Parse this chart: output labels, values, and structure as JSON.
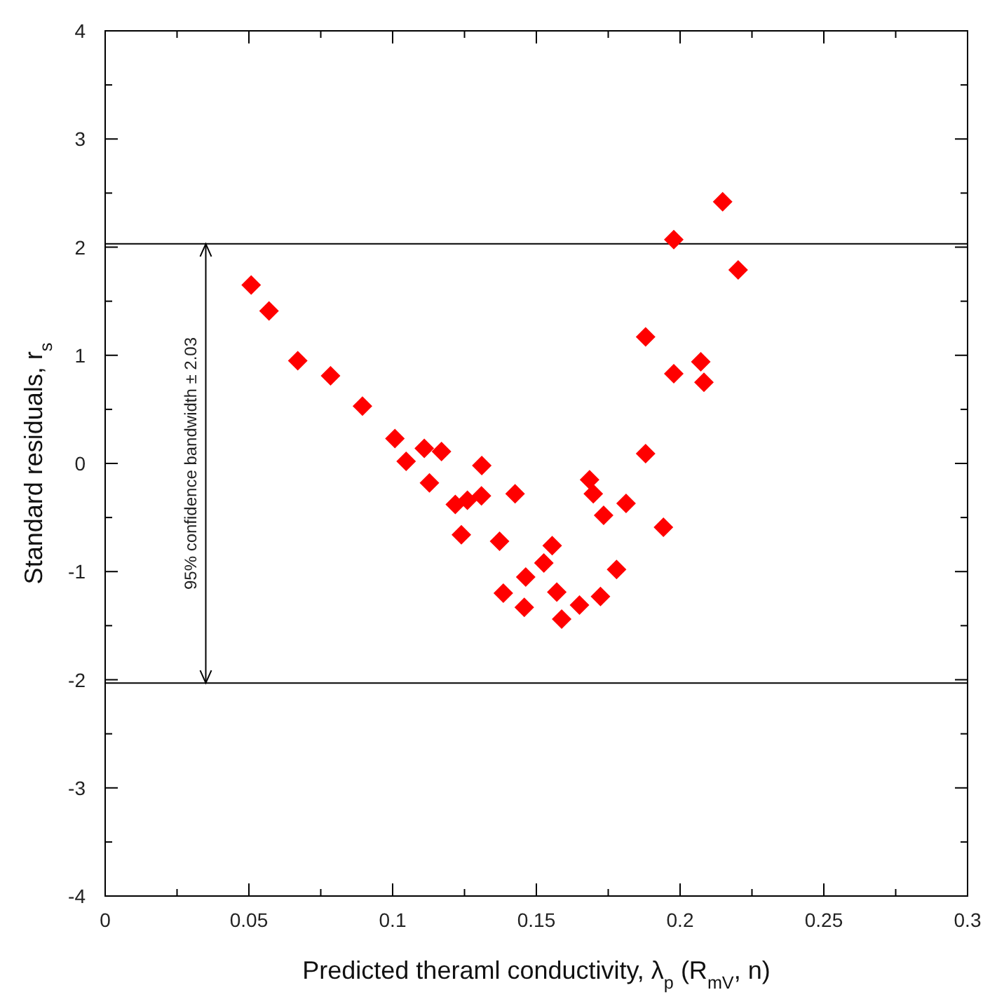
{
  "chart_data": {
    "type": "scatter",
    "xlabel": "Predicted theraml conductivity, λ$_{p}$ (R$_{mV}$, n)",
    "ylabel": "Standard residuals, r$_{s}$",
    "xlim": [
      0,
      0.3
    ],
    "ylim": [
      -4,
      4
    ],
    "xticks": [
      0,
      {
        "value": 0.025,
        "label": null
      },
      0.05,
      {
        "value": 0.075,
        "label": null
      },
      0.1,
      {
        "value": 0.125,
        "label": null
      },
      0.15,
      {
        "value": 0.175,
        "label": null
      },
      0.2,
      {
        "value": 0.225,
        "label": null
      },
      0.25,
      {
        "value": 0.275,
        "label": null
      },
      0.3
    ],
    "yticks": [
      -4,
      {
        "value": -3.5,
        "label": null
      },
      -3,
      {
        "value": -2.5,
        "label": null
      },
      -2,
      {
        "value": -1.5,
        "label": null
      },
      -1,
      {
        "value": -0.5,
        "label": null
      },
      0,
      {
        "value": 0.5,
        "label": null
      },
      1,
      {
        "value": 1.5,
        "label": null
      },
      2,
      {
        "value": 2.5,
        "label": null
      },
      3,
      {
        "value": 3.5,
        "label": null
      },
      4
    ],
    "grid": false,
    "marker": "diamond",
    "ref_lines": [
      {
        "axis": "y",
        "value": 2.03,
        "color": "#000000"
      },
      {
        "axis": "y",
        "value": -2.03,
        "color": "#000000"
      }
    ],
    "annotations": [
      "95% confidence bandwidth ± 2.03"
    ],
    "series": [
      {
        "color": "#ff0000",
        "x": [
          0.0508,
          0.057,
          0.067,
          0.0784,
          0.0895,
          0.1008,
          0.1047,
          0.111,
          0.117,
          0.1128,
          0.131,
          0.1218,
          0.126,
          0.1309,
          0.1239,
          0.1372,
          0.1385,
          0.1426,
          0.188,
          0.1685,
          0.1698,
          0.1812,
          0.1734,
          0.1942,
          0.1555,
          0.1526,
          0.1779,
          0.1463,
          0.1571,
          0.1723,
          0.1458,
          0.165,
          0.1588,
          0.2148,
          0.1978,
          0.2202,
          0.188,
          0.1978,
          0.2072,
          0.2083
        ],
        "values": [
          1.65,
          1.41,
          0.95,
          0.81,
          0.53,
          0.23,
          0.02,
          0.14,
          0.11,
          -0.18,
          -0.02,
          -0.38,
          -0.34,
          -0.3,
          -0.66,
          -0.72,
          -1.2,
          -0.28,
          0.09,
          -0.15,
          -0.28,
          -0.37,
          -0.48,
          -0.59,
          -0.76,
          -0.92,
          -0.98,
          -1.05,
          -1.19,
          -1.23,
          -1.33,
          -1.31,
          -1.44,
          2.42,
          2.07,
          1.79,
          1.17,
          0.83,
          0.94,
          0.75
        ]
      }
    ]
  }
}
